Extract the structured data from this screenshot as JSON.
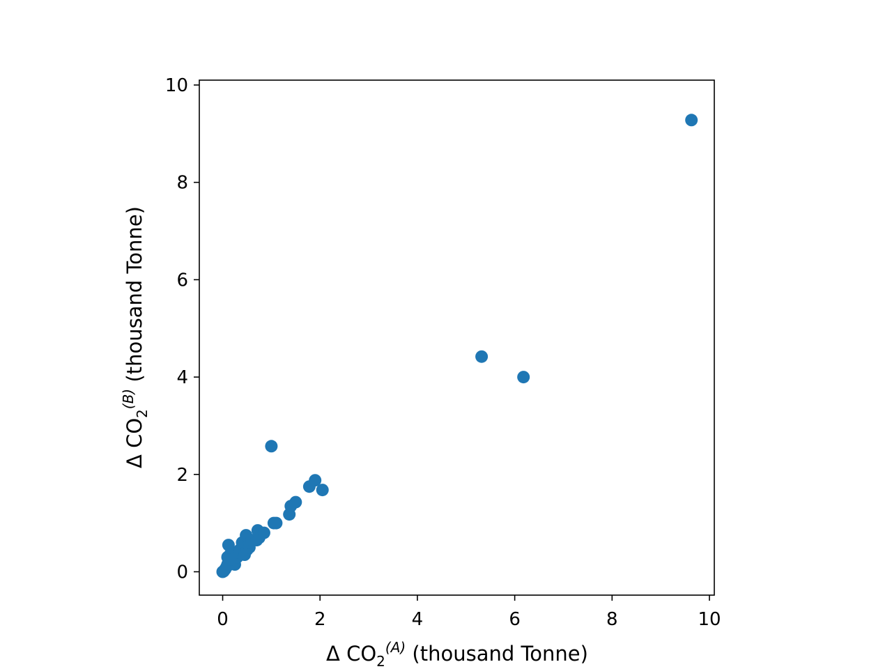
{
  "chart_data": {
    "type": "scatter",
    "xlabel": {
      "prefix": "Δ CO",
      "sub": "2",
      "sup": "(A)",
      "suffix": " (thousand Tonne)"
    },
    "ylabel": {
      "prefix": "Δ CO",
      "sub": "2",
      "sup": "(B)",
      "suffix": " (thousand Tonne)"
    },
    "xlim": [
      -0.48,
      10.1
    ],
    "ylim": [
      -0.48,
      10.1
    ],
    "xticks": [
      0,
      2,
      4,
      6,
      8,
      10
    ],
    "yticks": [
      0,
      2,
      4,
      6,
      8,
      10
    ],
    "xtick_labels": [
      "0",
      "2",
      "4",
      "6",
      "8",
      "10"
    ],
    "ytick_labels": [
      "0",
      "2",
      "4",
      "6",
      "8",
      "10"
    ],
    "grid": false,
    "legend": "none",
    "marker_color": "#1f77b4",
    "series": [
      {
        "points": [
          [
            0.0,
            0.0
          ],
          [
            0.02,
            0.01
          ],
          [
            0.05,
            0.05
          ],
          [
            0.08,
            0.1
          ],
          [
            0.1,
            0.15
          ],
          [
            0.12,
            0.55
          ],
          [
            0.1,
            0.3
          ],
          [
            0.15,
            0.35
          ],
          [
            0.2,
            0.2
          ],
          [
            0.25,
            0.15
          ],
          [
            0.15,
            0.25
          ],
          [
            0.3,
            0.3
          ],
          [
            0.3,
            0.4
          ],
          [
            0.35,
            0.45
          ],
          [
            0.4,
            0.6
          ],
          [
            0.45,
            0.35
          ],
          [
            0.48,
            0.75
          ],
          [
            0.5,
            0.45
          ],
          [
            0.55,
            0.5
          ],
          [
            0.55,
            0.6
          ],
          [
            0.6,
            0.65
          ],
          [
            0.7,
            0.65
          ],
          [
            0.72,
            0.85
          ],
          [
            0.75,
            0.7
          ],
          [
            0.85,
            0.8
          ],
          [
            1.0,
            2.58
          ],
          [
            1.05,
            1.0
          ],
          [
            1.1,
            1.0
          ],
          [
            1.37,
            1.18
          ],
          [
            1.4,
            1.35
          ],
          [
            1.5,
            1.43
          ],
          [
            1.78,
            1.75
          ],
          [
            1.9,
            1.88
          ],
          [
            2.05,
            1.68
          ],
          [
            5.32,
            4.42
          ],
          [
            6.18,
            4.0
          ],
          [
            9.63,
            9.28
          ]
        ]
      }
    ]
  }
}
